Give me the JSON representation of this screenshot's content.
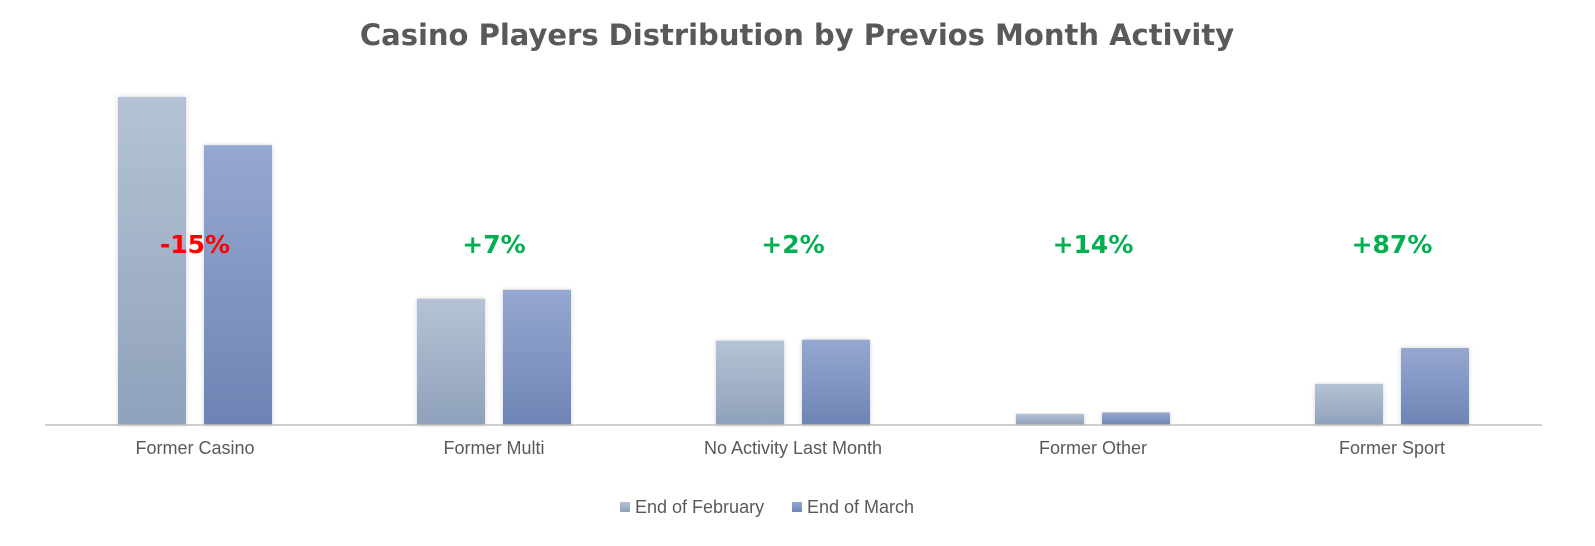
{
  "chart_data": {
    "type": "bar",
    "title": "Casino Players Distribution by Previos Month Activity",
    "categories": [
      "Former Casino",
      "Former Multi",
      "No Activity Last Month",
      "Former Other",
      "Former Sport"
    ],
    "series": [
      {
        "name": "End of February",
        "values": [
          100,
          38.5,
          25.7,
          3.4,
          12.5
        ]
      },
      {
        "name": "End of March",
        "values": [
          85.3,
          41.2,
          26.0,
          3.8,
          23.5
        ]
      }
    ],
    "change_labels": [
      "-15%",
      "+7%",
      "+2%",
      "+14%",
      "+87%"
    ],
    "change_colors": [
      "#ff0000",
      "#00b050",
      "#00b050",
      "#00b050",
      "#00b050"
    ],
    "ylim": [
      0,
      100
    ],
    "grid": false,
    "legend_position": "bottom",
    "colors": {
      "series1_top": "#b4c3d5",
      "series1_bottom": "#8fa1bb",
      "series2_top": "#95a8d1",
      "series2_bottom": "#6d84b4",
      "axis": "#bfbfbf"
    }
  }
}
